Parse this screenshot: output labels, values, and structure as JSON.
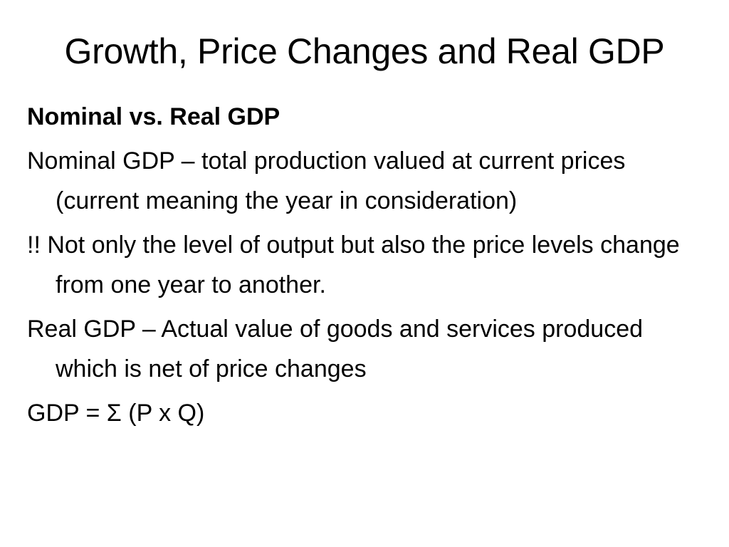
{
  "slide": {
    "title": "Growth, Price Changes and Real GDP",
    "paragraphs": [
      {
        "text": "Nominal vs. Real GDP",
        "bold": true
      },
      {
        "text": "Nominal GDP – total production valued at current prices (current meaning the year in consideration)",
        "bold": false
      },
      {
        "text": "!! Not only the level of output but also the price levels change from one year to another.",
        "bold": false
      },
      {
        "text": "Real GDP – Actual value of goods and services produced which is net of price changes",
        "bold": false
      },
      {
        "text": "GDP = Σ (P x Q)",
        "bold": false
      }
    ]
  }
}
